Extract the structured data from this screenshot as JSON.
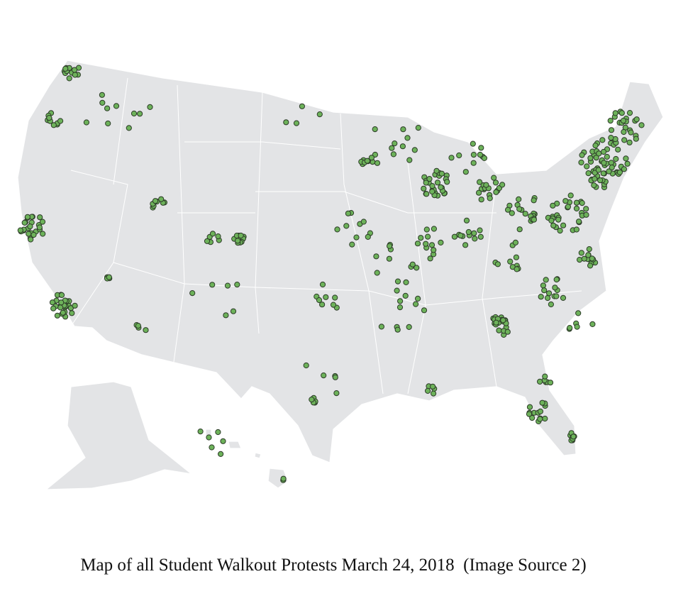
{
  "caption": "Map of all Student Walkout Protests March 24, 2018  (Image Source 2)"
}
